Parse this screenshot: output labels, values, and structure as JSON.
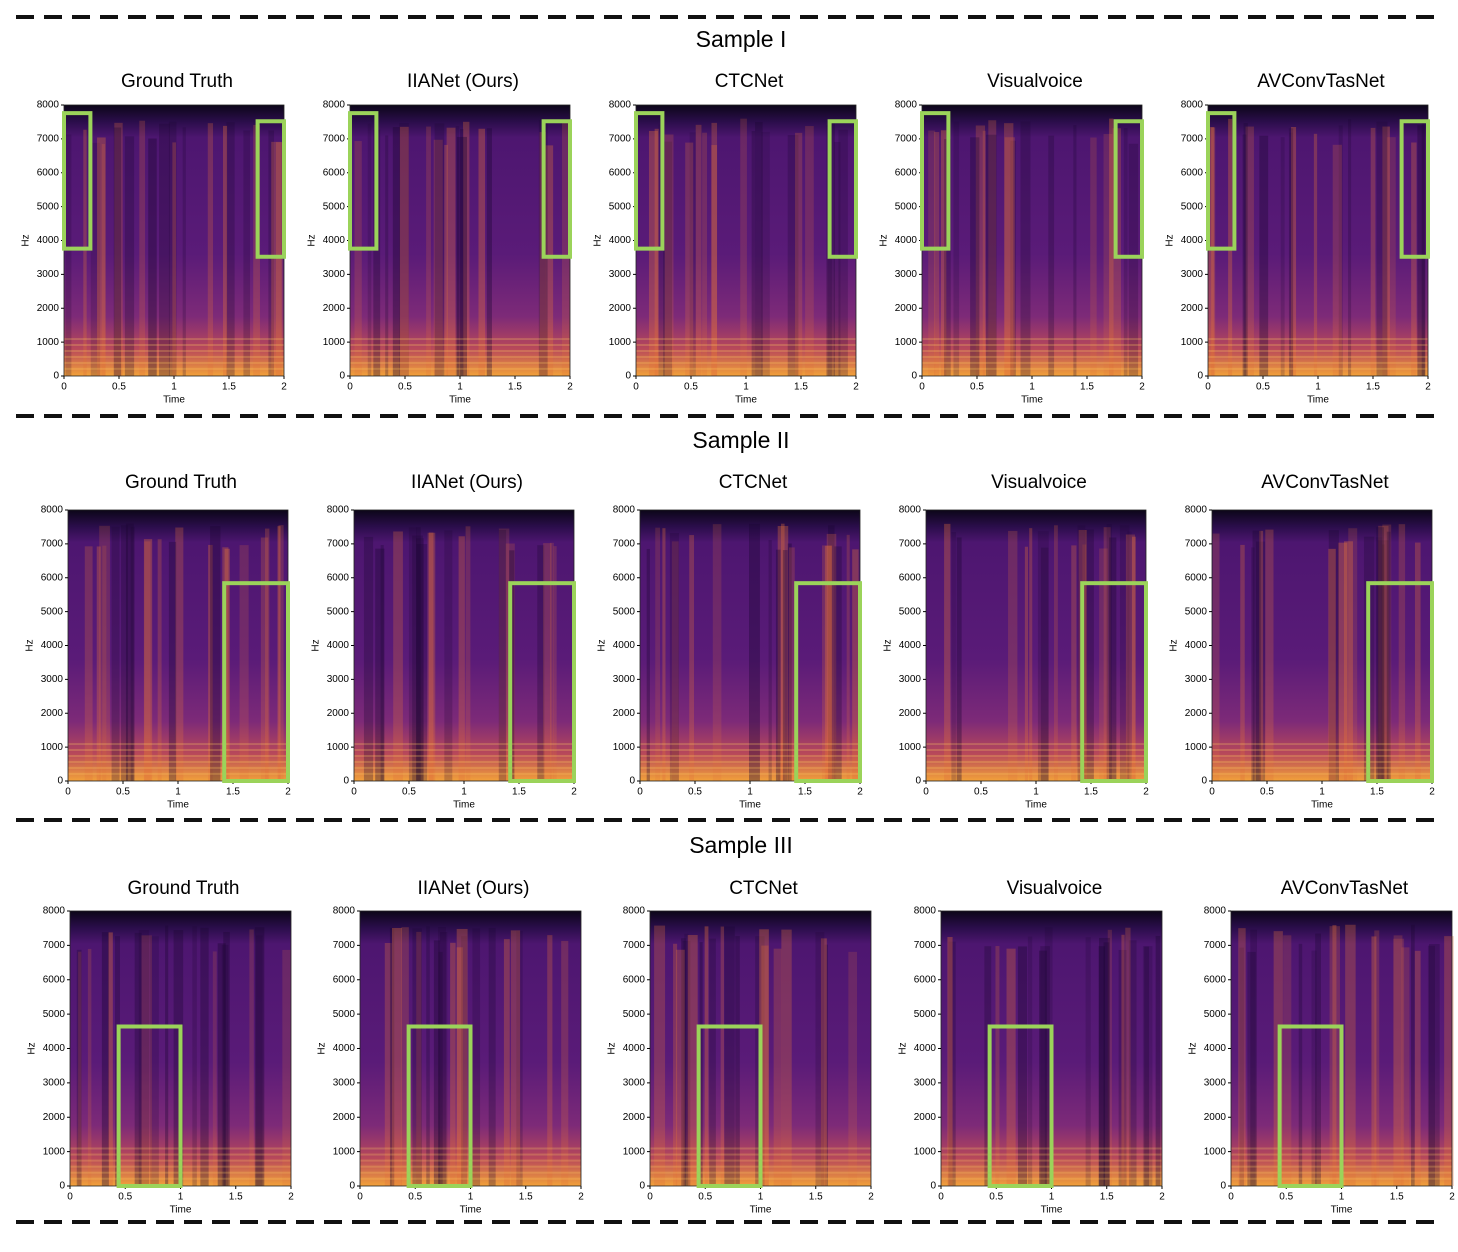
{
  "axes": {
    "yticks": [
      "0",
      "1000",
      "2000",
      "3000",
      "4000",
      "5000",
      "6000",
      "7000",
      "8000"
    ],
    "xticks": [
      "0",
      "0.5",
      "1",
      "1.5",
      "2"
    ],
    "ylabel": "Hz",
    "xlabel": "Time"
  },
  "samples": [
    {
      "title": "Sample I",
      "panels": [
        {
          "title": "Ground Truth"
        },
        {
          "title": "IIANet (Ours)"
        },
        {
          "title": "CTCNet"
        },
        {
          "title": "Visualvoice"
        },
        {
          "title": "AVConvTasNet"
        }
      ]
    },
    {
      "title": "Sample II",
      "panels": [
        {
          "title": "Ground Truth"
        },
        {
          "title": "IIANet (Ours)"
        },
        {
          "title": "CTCNet"
        },
        {
          "title": "Visualvoice"
        },
        {
          "title": "AVConvTasNet"
        }
      ]
    },
    {
      "title": "Sample III",
      "panels": [
        {
          "title": "Ground Truth"
        },
        {
          "title": "IIANet (Ours)"
        },
        {
          "title": "CTCNet"
        },
        {
          "title": "Visualvoice"
        },
        {
          "title": "AVConvTasNet"
        }
      ]
    }
  ]
}
